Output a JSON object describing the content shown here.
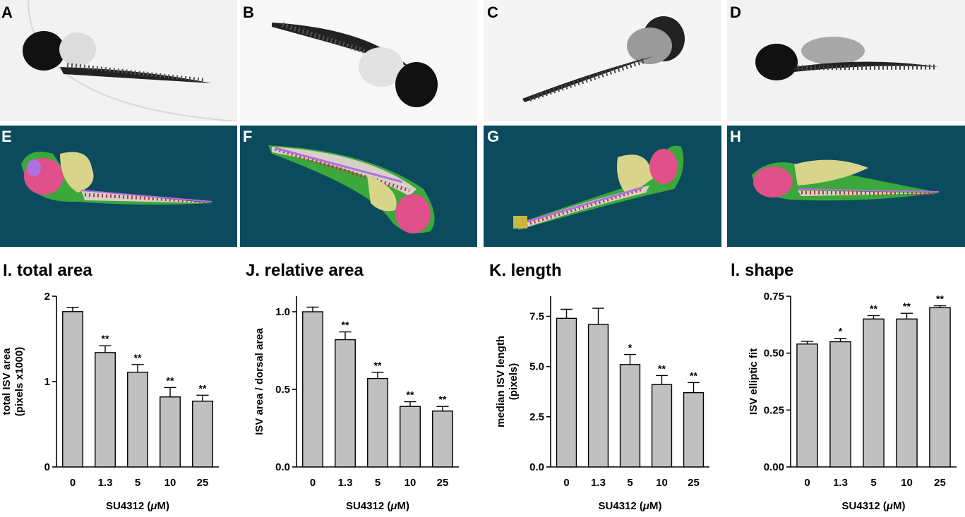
{
  "images": {
    "top": [
      {
        "label": "A",
        "icon": "zebrafish-grayscale-image"
      },
      {
        "label": "B",
        "icon": "zebrafish-grayscale-image"
      },
      {
        "label": "C",
        "icon": "zebrafish-grayscale-image"
      },
      {
        "label": "D",
        "icon": "zebrafish-grayscale-image"
      }
    ],
    "bottom": [
      {
        "label": "E",
        "icon": "zebrafish-segmentation-image"
      },
      {
        "label": "F",
        "icon": "zebrafish-segmentation-image"
      },
      {
        "label": "G",
        "icon": "zebrafish-segmentation-image"
      },
      {
        "label": "H",
        "icon": "zebrafish-segmentation-image"
      }
    ],
    "colors": {
      "segmentation_bg": "#0c4a5e",
      "yolk": "#d8d48a",
      "head": "#e0508a",
      "outline": "#3aa83a",
      "vessel": "#b070e0",
      "isv": "#b03a3a",
      "trunk": "#d8d0c8"
    }
  },
  "chart_data": [
    {
      "type": "bar",
      "title": "I. total area",
      "ylabel": [
        "total ISV area",
        "(pixels x1000)"
      ],
      "xlabel_prefix": "SU4312 (",
      "xlabel_mu": "μ",
      "xlabel_suffix": "M)",
      "categories": [
        "0",
        "1.3",
        "5",
        "10",
        "25"
      ],
      "values": [
        1.82,
        1.34,
        1.11,
        0.82,
        0.77
      ],
      "errors": [
        0.05,
        0.08,
        0.09,
        0.11,
        0.07
      ],
      "significance": [
        "",
        "**",
        "**",
        "**",
        "**"
      ],
      "ylim": [
        0,
        2
      ],
      "yticks": [
        0,
        1,
        2
      ],
      "ytick_labels": [
        "0",
        "1",
        "2"
      ],
      "bar_color": "#c0c0c0"
    },
    {
      "type": "bar",
      "title": "J. relative area",
      "ylabel": [
        "ISV area / dorsal area"
      ],
      "xlabel_prefix": "SU4312 (",
      "xlabel_mu": "μ",
      "xlabel_suffix": "M)",
      "categories": [
        "0",
        "1.3",
        "5",
        "10",
        "25"
      ],
      "values": [
        1.0,
        0.82,
        0.57,
        0.39,
        0.36
      ],
      "errors": [
        0.03,
        0.05,
        0.04,
        0.03,
        0.03
      ],
      "significance": [
        "",
        "**",
        "**",
        "**",
        "**"
      ],
      "ylim": [
        0,
        1.1
      ],
      "yticks": [
        0,
        0.5,
        1.0
      ],
      "ytick_labels": [
        "0.0",
        "0.5",
        "1.0"
      ],
      "bar_color": "#c0c0c0"
    },
    {
      "type": "bar",
      "title": "K. length",
      "ylabel": [
        "median ISV length",
        "(pixels)"
      ],
      "xlabel_prefix": "SU4312 (",
      "xlabel_mu": "μ",
      "xlabel_suffix": "M)",
      "categories": [
        "0",
        "1.3",
        "5",
        "10",
        "25"
      ],
      "values": [
        7.4,
        7.1,
        5.1,
        4.1,
        3.7
      ],
      "errors": [
        0.45,
        0.8,
        0.5,
        0.45,
        0.5
      ],
      "significance": [
        "",
        "",
        "*",
        "**",
        "**"
      ],
      "ylim": [
        0,
        8.5
      ],
      "yticks": [
        0,
        2.5,
        5.0,
        7.5
      ],
      "ytick_labels": [
        "0.0",
        "2.5",
        "5.0",
        "7.5"
      ],
      "bar_color": "#c0c0c0"
    },
    {
      "type": "bar",
      "title": "l. shape",
      "ylabel": [
        "ISV elliptic fit"
      ],
      "xlabel_prefix": "SU4312 (",
      "xlabel_mu": "μ",
      "xlabel_suffix": "M)",
      "categories": [
        "0",
        "1.3",
        "5",
        "10",
        "25"
      ],
      "values": [
        0.54,
        0.55,
        0.65,
        0.65,
        0.7
      ],
      "errors": [
        0.012,
        0.015,
        0.015,
        0.025,
        0.008
      ],
      "significance": [
        "",
        "*",
        "**",
        "**",
        "**"
      ],
      "ylim": [
        0,
        0.75
      ],
      "yticks": [
        0,
        0.25,
        0.5,
        0.75
      ],
      "ytick_labels": [
        "0.00",
        "0.25",
        "0.50",
        "0.75"
      ],
      "bar_color": "#c0c0c0"
    }
  ]
}
